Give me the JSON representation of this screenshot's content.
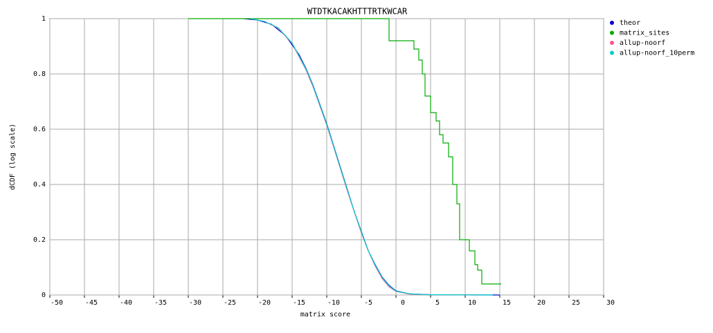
{
  "chart_data": {
    "type": "line",
    "title": "WTDTKACAKHTTTRTKWCAR",
    "x_label": "matrix score",
    "y_label": "dCDF (log scale)",
    "xlim": [
      -50,
      30
    ],
    "xticks": [
      -50,
      -45,
      -40,
      -35,
      -30,
      -25,
      -20,
      -15,
      -10,
      -5,
      0,
      5,
      10,
      15,
      20,
      25,
      30
    ],
    "ylim": [
      0,
      1
    ],
    "yticks": [
      0,
      0.2,
      0.4,
      0.6,
      0.8,
      1
    ],
    "grid": true,
    "legend": "right",
    "series": [
      {
        "name": "theor",
        "color": "#0000cc",
        "x": [
          -22,
          -20,
          -18,
          -16,
          -14,
          -13,
          -12,
          -11,
          -10,
          -9,
          -8,
          -7,
          -6,
          -5,
          -4,
          -3,
          -2,
          -1,
          0,
          2,
          5,
          10,
          15
        ],
        "values": [
          1,
          0.995,
          0.98,
          0.94,
          0.87,
          0.82,
          0.76,
          0.69,
          0.62,
          0.54,
          0.46,
          0.38,
          0.3,
          0.23,
          0.16,
          0.11,
          0.065,
          0.035,
          0.015,
          0.004,
          0.001,
          0.0003,
          0
        ]
      },
      {
        "name": "matrix_sites",
        "color": "#00aa00",
        "x": [
          -30,
          -1,
          -1,
          2.6,
          2.6,
          3.3,
          3.3,
          3.8,
          3.8,
          4.2,
          4.2,
          5,
          5,
          5.8,
          5.8,
          6.3,
          6.3,
          6.8,
          6.8,
          7.6,
          7.6,
          8.2,
          8.2,
          8.8,
          8.8,
          9.2,
          9.2,
          10.6,
          10.6,
          11.4,
          11.4,
          11.8,
          11.8,
          12.4,
          12.4,
          15.2
        ],
        "values": [
          1,
          1,
          0.92,
          0.92,
          0.89,
          0.89,
          0.85,
          0.85,
          0.8,
          0.8,
          0.72,
          0.72,
          0.66,
          0.66,
          0.63,
          0.63,
          0.58,
          0.58,
          0.55,
          0.55,
          0.5,
          0.5,
          0.4,
          0.4,
          0.33,
          0.33,
          0.2,
          0.2,
          0.16,
          0.16,
          0.11,
          0.11,
          0.09,
          0.09,
          0.04,
          0.04
        ]
      },
      {
        "name": "allup-noorf",
        "color": "#ff5588",
        "x": [
          -21,
          -19,
          -17,
          -15,
          -13,
          -12,
          -11,
          -10,
          -9,
          -8,
          -7,
          -6,
          -5,
          -4,
          -3,
          -2,
          -1,
          0,
          2,
          5,
          12
        ],
        "values": [
          1,
          0.99,
          0.965,
          0.91,
          0.815,
          0.755,
          0.685,
          0.615,
          0.535,
          0.455,
          0.375,
          0.3,
          0.225,
          0.16,
          0.105,
          0.06,
          0.03,
          0.013,
          0.003,
          0.001,
          0
        ]
      },
      {
        "name": "allup-noorf_10perm",
        "color": "#00cccc",
        "x": [
          -21,
          -19,
          -17,
          -15,
          -13,
          -12,
          -11,
          -10,
          -9,
          -8,
          -7,
          -6,
          -5,
          -4,
          -3,
          -2,
          -1,
          0,
          2,
          5,
          14
        ],
        "values": [
          1,
          0.99,
          0.967,
          0.912,
          0.818,
          0.758,
          0.688,
          0.618,
          0.538,
          0.458,
          0.378,
          0.3,
          0.228,
          0.16,
          0.108,
          0.063,
          0.033,
          0.014,
          0.004,
          0.001,
          0
        ]
      }
    ]
  }
}
